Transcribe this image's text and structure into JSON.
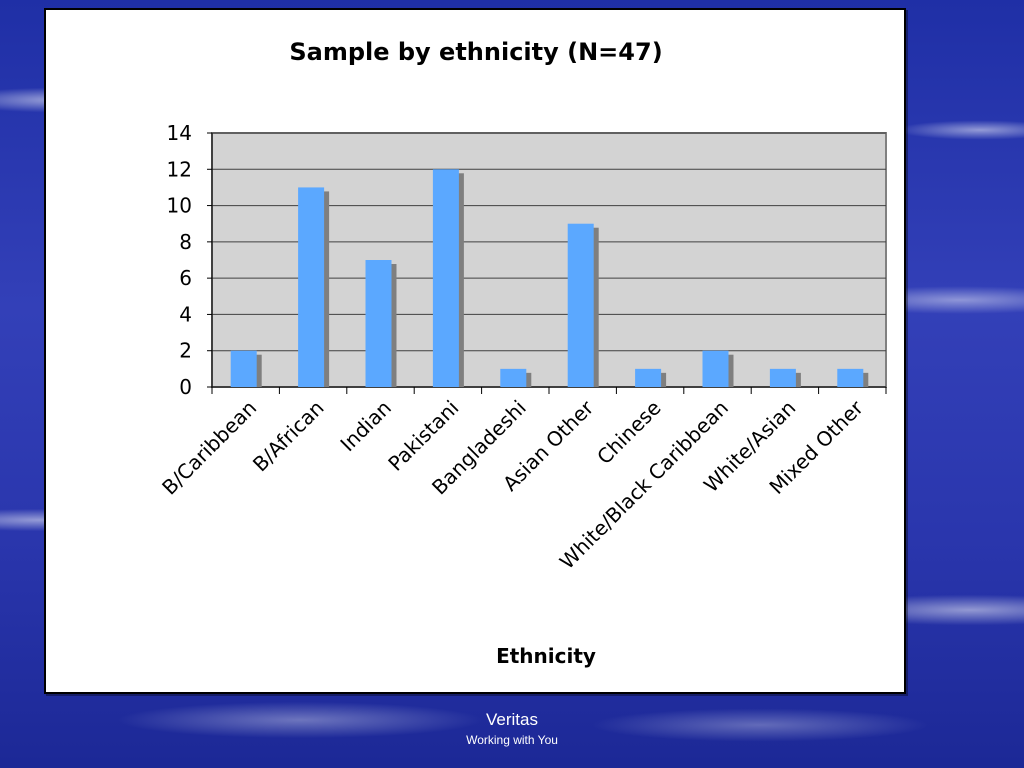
{
  "chart_data": {
    "type": "bar",
    "title": "Sample by ethnicity (N=47)",
    "xlabel": "Ethnicity",
    "ylabel": "",
    "categories": [
      "B/Caribbean",
      "B/African",
      "Indian",
      "Pakistani",
      "Bangladeshi",
      "Asian Other",
      "Chinese",
      "White/Black Caribbean",
      "White/Asian",
      "Mixed Other"
    ],
    "values": [
      2,
      11,
      7,
      12,
      1,
      9,
      1,
      2,
      1,
      1
    ],
    "ylim": [
      0,
      14
    ],
    "yticks": [
      0,
      2,
      4,
      6,
      8,
      10,
      12,
      14
    ],
    "grid": true,
    "legend": "none",
    "colors": {
      "bar": "#5ba8ff",
      "bar_shadow": "#7f7f7f",
      "plot_background": "#d3d3d3",
      "gridline": "#404040"
    }
  },
  "footer": {
    "brand": "Veritas",
    "tagline": "Working with You"
  }
}
